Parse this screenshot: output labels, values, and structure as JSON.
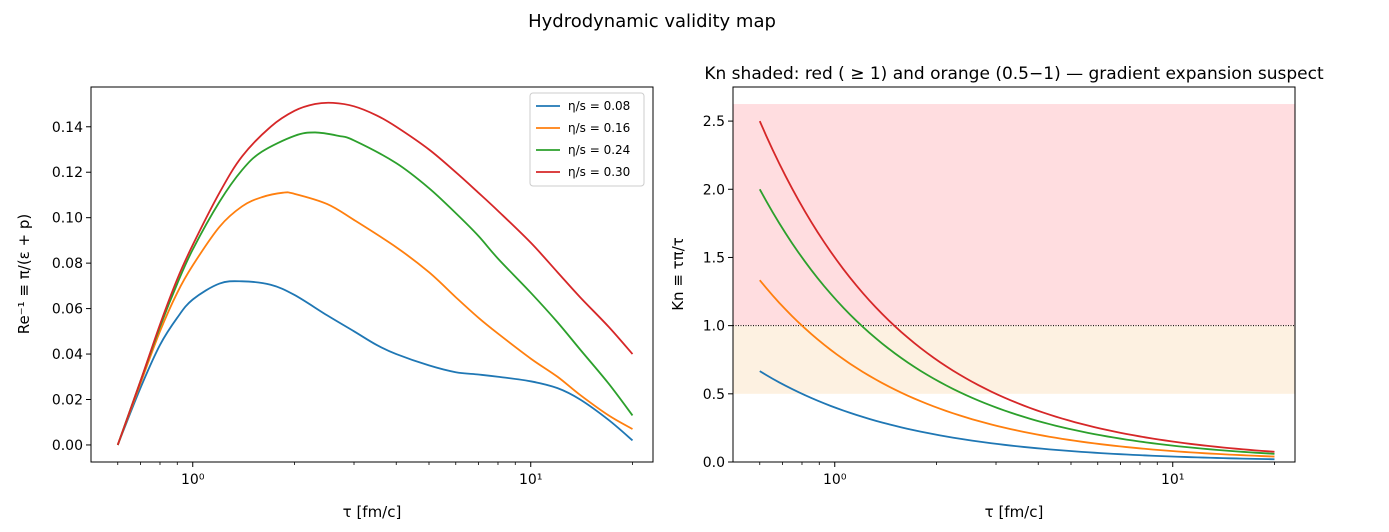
{
  "figure": {
    "suptitle": "Hydrodynamic validity map"
  },
  "series_styles": [
    {
      "name": "η/s = 0.08",
      "color": "#1f77b4"
    },
    {
      "name": "η/s = 0.16",
      "color": "#ff7f0e"
    },
    {
      "name": "η/s = 0.24",
      "color": "#2ca02c"
    },
    {
      "name": "η/s = 0.30",
      "color": "#d62728"
    }
  ],
  "chart_data": [
    {
      "type": "line",
      "title": "",
      "xlabel": "τ [fm/c]",
      "ylabel": "Re⁻¹ ≡ π/(ε + p)",
      "xscale": "log",
      "xlim": [
        0.5,
        23
      ],
      "ylim": [
        -0.0075,
        0.1575
      ],
      "xticks": [
        {
          "value": 1,
          "label": "10⁰"
        },
        {
          "value": 10,
          "label": "10¹"
        }
      ],
      "yticks": [
        0,
        0.02,
        0.04,
        0.06,
        0.08,
        0.1,
        0.12,
        0.14
      ],
      "ytick_labels": [
        "0.00",
        "0.02",
        "0.04",
        "0.06",
        "0.08",
        "0.10",
        "0.12",
        "0.14"
      ],
      "grid": false,
      "legend_position": "top-right",
      "series": [
        {
          "name": "η/s = 0.08",
          "color": "#1f77b4",
          "x": [
            0.6,
            0.7,
            0.8,
            0.9,
            1.0,
            1.2,
            1.4,
            1.7,
            2.0,
            2.5,
            3.0,
            3.5,
            4.0,
            5.0,
            6.0,
            7.0,
            8.0,
            10.0,
            12.0,
            14.0,
            17.0,
            20.0
          ],
          "y": [
            0.0,
            0.025,
            0.044,
            0.056,
            0.064,
            0.071,
            0.072,
            0.0705,
            0.066,
            0.057,
            0.05,
            0.044,
            0.04,
            0.035,
            0.032,
            0.031,
            0.03,
            0.028,
            0.025,
            0.02,
            0.011,
            0.002
          ]
        },
        {
          "name": "η/s = 0.16",
          "color": "#ff7f0e",
          "x": [
            0.6,
            0.7,
            0.8,
            0.9,
            1.0,
            1.2,
            1.4,
            1.6,
            1.85,
            2.0,
            2.5,
            3.0,
            4.0,
            5.0,
            6.0,
            7.0,
            8.0,
            10.0,
            12.0,
            14.0,
            17.0,
            20.0
          ],
          "y": [
            0.0,
            0.027,
            0.05,
            0.067,
            0.079,
            0.096,
            0.105,
            0.109,
            0.111,
            0.1105,
            0.106,
            0.099,
            0.087,
            0.076,
            0.065,
            0.056,
            0.049,
            0.038,
            0.03,
            0.022,
            0.013,
            0.007
          ]
        },
        {
          "name": "η/s = 0.24",
          "color": "#2ca02c",
          "x": [
            0.6,
            0.7,
            0.8,
            0.9,
            1.0,
            1.2,
            1.4,
            1.6,
            2.0,
            2.3,
            2.7,
            3.0,
            4.0,
            5.0,
            6.0,
            7.0,
            8.0,
            10.0,
            12.0,
            14.0,
            17.0,
            20.0
          ],
          "y": [
            0.0,
            0.028,
            0.052,
            0.071,
            0.086,
            0.107,
            0.121,
            0.129,
            0.136,
            0.1375,
            0.136,
            0.134,
            0.124,
            0.113,
            0.102,
            0.092,
            0.082,
            0.067,
            0.054,
            0.042,
            0.027,
            0.013
          ]
        },
        {
          "name": "η/s = 0.30",
          "color": "#d62728",
          "x": [
            0.6,
            0.7,
            0.8,
            0.9,
            1.0,
            1.2,
            1.4,
            1.7,
            2.0,
            2.3,
            2.6,
            3.0,
            3.5,
            4.0,
            5.0,
            6.0,
            7.0,
            8.0,
            10.0,
            12.0,
            14.0,
            17.0,
            20.0
          ],
          "y": [
            0.0,
            0.028,
            0.053,
            0.073,
            0.088,
            0.111,
            0.127,
            0.14,
            0.147,
            0.15,
            0.1505,
            0.149,
            0.145,
            0.14,
            0.13,
            0.12,
            0.111,
            0.103,
            0.089,
            0.076,
            0.065,
            0.052,
            0.04
          ]
        }
      ]
    },
    {
      "type": "line",
      "title": "Kn shaded: red ( ≥ 1) and orange (0.5−1) — gradient expansion suspect",
      "xlabel": "τ [fm/c]",
      "ylabel": "Kn ≡ τπ/τ",
      "xscale": "log",
      "xlim": [
        0.5,
        23
      ],
      "ylim": [
        0.0,
        2.75
      ],
      "xticks": [
        {
          "value": 1,
          "label": "10⁰"
        },
        {
          "value": 10,
          "label": "10¹"
        }
      ],
      "yticks": [
        0.0,
        0.5,
        1.0,
        1.5,
        2.0,
        2.5
      ],
      "ytick_labels": [
        "0.0",
        "0.5",
        "1.0",
        "1.5",
        "2.0",
        "2.5"
      ],
      "grid": false,
      "bands": [
        {
          "y0": 1.0,
          "y1": 2.625,
          "color": "#ffdde0"
        },
        {
          "y0": 0.5,
          "y1": 1.0,
          "color": "#fdf1e1"
        }
      ],
      "hline": {
        "y": 1.0,
        "style": "dotted",
        "color": "#000000"
      },
      "series": [
        {
          "name": "η/s = 0.08",
          "color": "#1f77b4",
          "kn_coeff": 0.4,
          "x_range": [
            0.6,
            20
          ]
        },
        {
          "name": "η/s = 0.16",
          "color": "#ff7f0e",
          "kn_coeff": 0.8,
          "x_range": [
            0.6,
            20
          ]
        },
        {
          "name": "η/s = 0.24",
          "color": "#2ca02c",
          "kn_coeff": 1.2,
          "x_range": [
            0.6,
            20
          ]
        },
        {
          "name": "η/s = 0.30",
          "color": "#d62728",
          "kn_coeff": 1.5,
          "x_range": [
            0.6,
            20
          ]
        }
      ]
    }
  ]
}
